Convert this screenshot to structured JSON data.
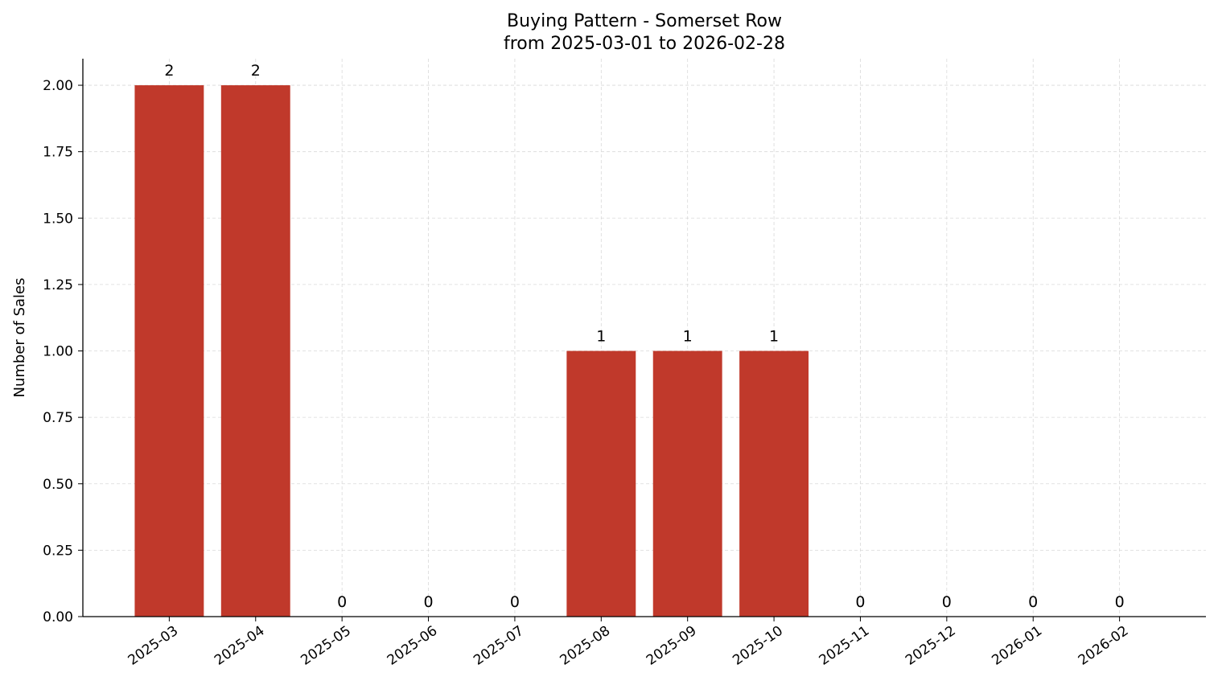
{
  "chart_data": {
    "type": "bar",
    "title": "Buying Pattern - Somerset Row",
    "subtitle": "from 2025-03-01 to 2026-02-28",
    "xlabel": "",
    "ylabel": "Number of Sales",
    "categories": [
      "2025-03",
      "2025-04",
      "2025-05",
      "2025-06",
      "2025-07",
      "2025-08",
      "2025-09",
      "2025-10",
      "2025-11",
      "2025-12",
      "2026-01",
      "2026-02"
    ],
    "values": [
      2,
      2,
      0,
      0,
      0,
      1,
      1,
      1,
      0,
      0,
      0,
      0
    ],
    "data_labels": [
      "2",
      "2",
      "0",
      "0",
      "0",
      "1",
      "1",
      "1",
      "0",
      "0",
      "0",
      "0"
    ],
    "ylim": [
      0,
      2.1
    ],
    "yticks": [
      "0.00",
      "0.25",
      "0.50",
      "0.75",
      "1.00",
      "1.25",
      "1.50",
      "1.75",
      "2.00"
    ],
    "grid": true,
    "bar_color": "#c0392b",
    "grid_color": "#d9d9d9"
  }
}
